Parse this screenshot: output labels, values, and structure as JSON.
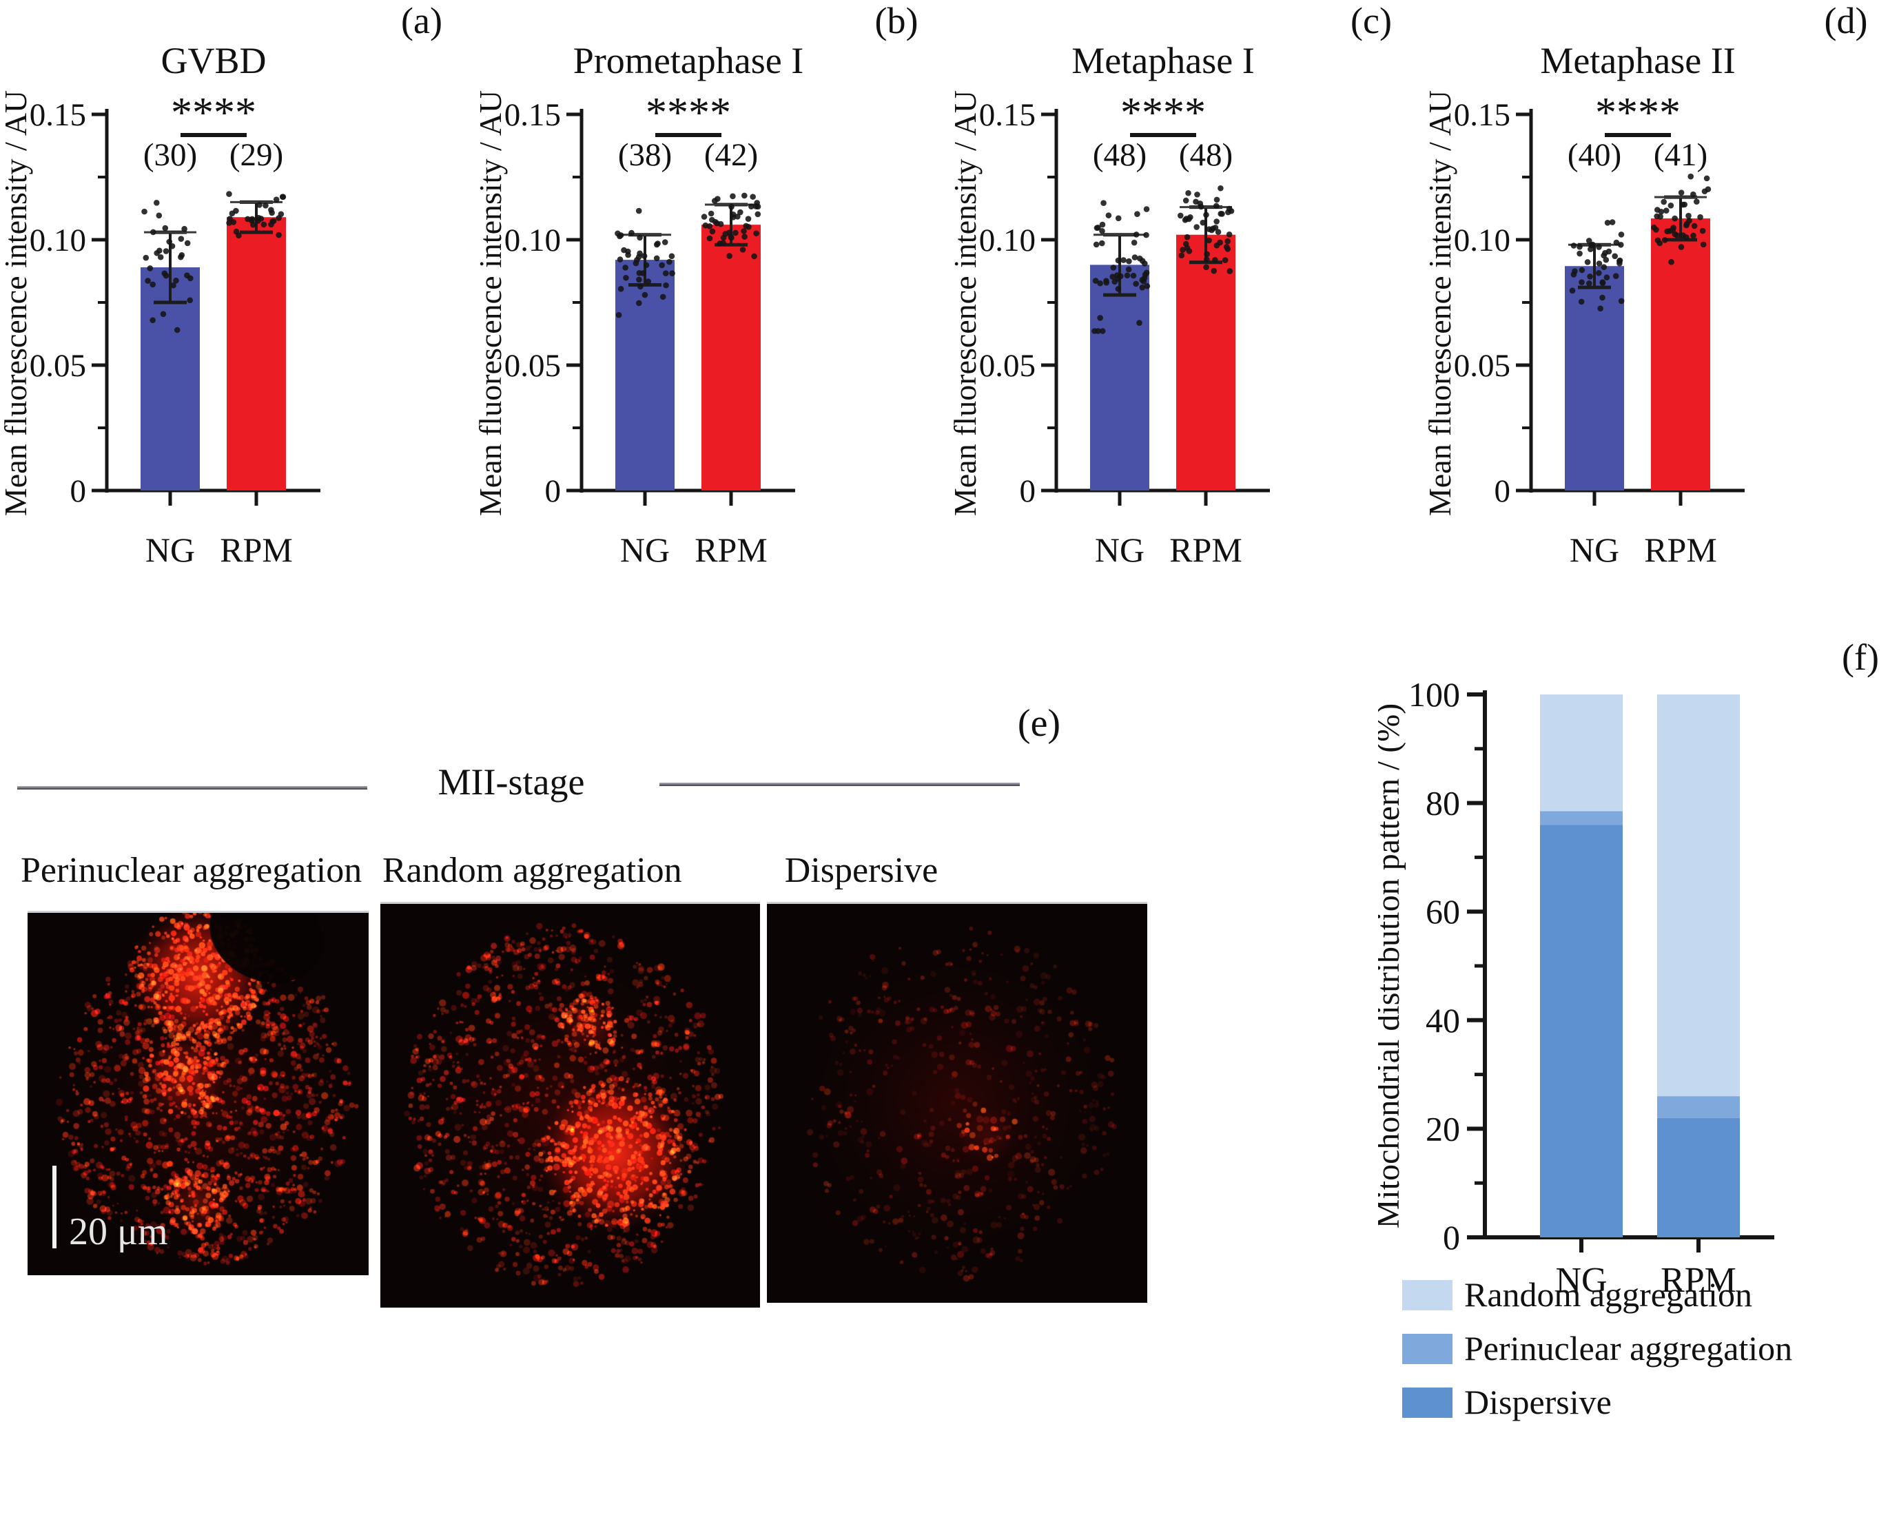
{
  "panel_e": {
    "panel_label": "(e)",
    "header": "MII-stage",
    "images": [
      {
        "caption": "Perinuclear aggregation",
        "pattern": "perinuclear"
      },
      {
        "caption": "Random aggregation",
        "pattern": "random"
      },
      {
        "caption": "Dispersive",
        "pattern": "dispersive"
      }
    ],
    "scale_bar_label": "20 μm"
  },
  "chart_data": [
    {
      "type": "bar",
      "panel_label": "(a)",
      "title": "GVBD",
      "ylabel": "Mean fluorescence intensity / AU",
      "categories": [
        "NG",
        "RPM"
      ],
      "values": [
        0.089,
        0.109
      ],
      "errors_sd": [
        0.014,
        0.006
      ],
      "sample_sizes": [
        "(30)",
        "(29)"
      ],
      "significance": "****",
      "bar_colors": [
        "#4A52A8",
        "#EC1C24"
      ],
      "ylim": [
        0,
        0.15
      ],
      "ytick_values": [
        0,
        0.05,
        0.1,
        0.15
      ],
      "ytick_labels": [
        "0",
        "0.05",
        "0.10",
        "0.15"
      ],
      "scatter_overlay": true
    },
    {
      "type": "bar",
      "panel_label": "(b)",
      "title": "Prometaphase I",
      "ylabel": "Mean fluorescence intensity / AU",
      "categories": [
        "NG",
        "RPM"
      ],
      "values": [
        0.092,
        0.106
      ],
      "errors_sd": [
        0.01,
        0.008
      ],
      "sample_sizes": [
        "(38)",
        "(42)"
      ],
      "significance": "****",
      "bar_colors": [
        "#4A52A8",
        "#EC1C24"
      ],
      "ylim": [
        0,
        0.15
      ],
      "ytick_values": [
        0,
        0.05,
        0.1,
        0.15
      ],
      "ytick_labels": [
        "0",
        "0.05",
        "0.10",
        "0.15"
      ],
      "scatter_overlay": true
    },
    {
      "type": "bar",
      "panel_label": "(c)",
      "title": "Metaphase I",
      "ylabel": "Mean fluorescence intensity / AU",
      "categories": [
        "NG",
        "RPM"
      ],
      "values": [
        0.09,
        0.102
      ],
      "errors_sd": [
        0.012,
        0.011
      ],
      "sample_sizes": [
        "(48)",
        "(48)"
      ],
      "significance": "****",
      "bar_colors": [
        "#4A52A8",
        "#EC1C24"
      ],
      "ylim": [
        0,
        0.15
      ],
      "ytick_values": [
        0,
        0.05,
        0.1,
        0.15
      ],
      "ytick_labels": [
        "0",
        "0.05",
        "0.10",
        "0.15"
      ],
      "scatter_overlay": true
    },
    {
      "type": "bar",
      "panel_label": "(d)",
      "title": "Metaphase II",
      "ylabel": "Mean fluorescence intensity / AU",
      "categories": [
        "NG",
        "RPM"
      ],
      "values": [
        0.0895,
        0.1085
      ],
      "errors_sd": [
        0.0085,
        0.0085
      ],
      "sample_sizes": [
        "(40)",
        "(41)"
      ],
      "significance": "****",
      "bar_colors": [
        "#4A52A8",
        "#EC1C24"
      ],
      "ylim": [
        0,
        0.15
      ],
      "ytick_values": [
        0,
        0.05,
        0.1,
        0.15
      ],
      "ytick_labels": [
        "0",
        "0.05",
        "0.10",
        "0.15"
      ],
      "scatter_overlay": true
    },
    {
      "type": "stacked-bar",
      "panel_label": "(f)",
      "ylabel": "Mitochondrial distribution pattern / (%)",
      "categories": [
        "NG",
        "RPM"
      ],
      "series": [
        {
          "name": "Dispersive",
          "color": "#5E91CF",
          "values": [
            76,
            22
          ]
        },
        {
          "name": "Perinuclear aggregation",
          "color": "#7FA9DC",
          "values": [
            2.5,
            4
          ]
        },
        {
          "name": "Random aggregation",
          "color": "#C4D8F0",
          "values": [
            21.5,
            74
          ]
        }
      ],
      "ylim": [
        0,
        100
      ],
      "ytick_values": [
        0,
        20,
        40,
        60,
        80,
        100
      ],
      "ytick_labels": [
        "0",
        "20",
        "40",
        "60",
        "80",
        "100"
      ],
      "legend": [
        "Random aggregation",
        "Perinuclear aggregation",
        "Dispersive"
      ],
      "legend_position": "below"
    }
  ]
}
